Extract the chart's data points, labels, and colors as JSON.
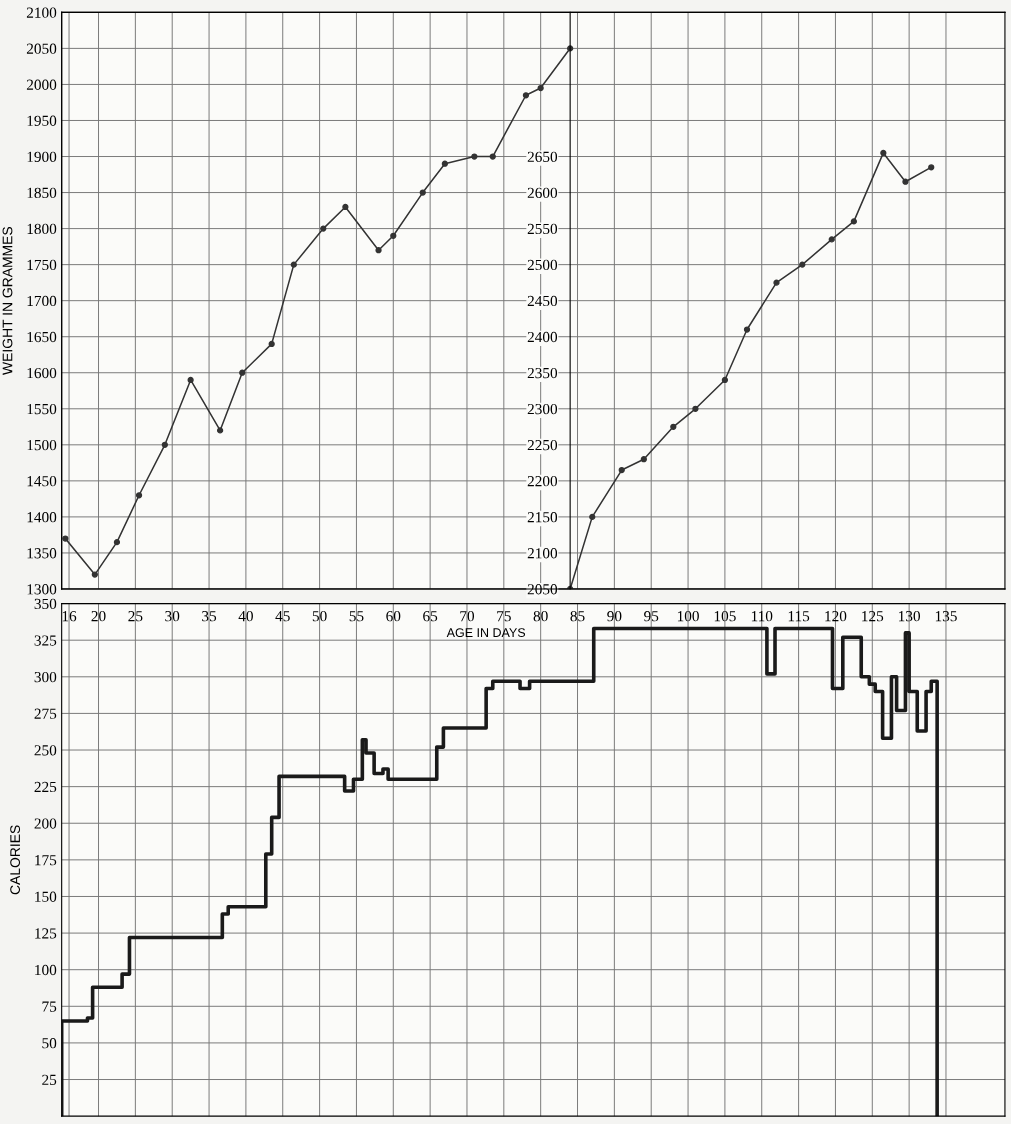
{
  "chart_data": [
    {
      "type": "line",
      "ylabel": "WEIGHT IN GRAMMES",
      "xlim": [
        15,
        143
      ],
      "xticks": [
        16,
        20,
        25,
        30,
        35,
        40,
        45,
        50,
        55,
        60,
        65,
        70,
        75,
        80,
        85,
        90,
        95,
        100,
        105,
        110,
        115,
        120,
        125,
        130,
        135
      ],
      "ylim": [
        1300,
        2100
      ],
      "yticks": [
        1300,
        1350,
        1400,
        1450,
        1500,
        1550,
        1600,
        1650,
        1700,
        1750,
        1800,
        1850,
        1900,
        1950,
        2000,
        2050,
        2100
      ],
      "y2lim": [
        2050,
        2850
      ],
      "y2ticks": [
        2050,
        2100,
        2150,
        2200,
        2250,
        2300,
        2350,
        2400,
        2450,
        2500,
        2550,
        2600,
        2650
      ],
      "tick_labels": "y",
      "grid": true,
      "marker": "circle",
      "line_style": "solid",
      "series": [
        {
          "color": "#333333",
          "x": [
            15.5,
            19.5,
            22.5,
            25.5,
            29,
            32.5,
            36.5,
            39.5,
            43.5,
            46.5,
            50.5,
            53.5,
            58,
            60,
            64,
            67,
            71,
            73.5,
            78,
            80,
            84
          ],
          "values": [
            1370,
            1320,
            1365,
            1430,
            1500,
            1590,
            1520,
            1600,
            1640,
            1750,
            1800,
            1830,
            1770,
            1790,
            1850,
            1890,
            1900,
            1900,
            1985,
            1995,
            2050
          ]
        },
        {
          "color": "#333333",
          "axis": "y2",
          "x": [
            84,
            87,
            91,
            94,
            98,
            101,
            105,
            108,
            112,
            115.5,
            119.5,
            122.5,
            126.5,
            129.5,
            133
          ],
          "values": [
            2050,
            2150,
            2215,
            2230,
            2275,
            2300,
            2340,
            2410,
            2475,
            2500,
            2535,
            2560,
            2655,
            2615,
            2635
          ]
        }
      ]
    },
    {
      "type": "step",
      "xlabel": "AGE IN DAYS",
      "ylabel": "CALORIES",
      "xlim": [
        15,
        143
      ],
      "xticks": [
        16,
        20,
        25,
        30,
        35,
        40,
        45,
        50,
        55,
        60,
        65,
        70,
        75,
        80,
        85,
        90,
        95,
        100,
        105,
        110,
        115,
        120,
        125,
        130,
        135
      ],
      "ylim": [
        0,
        350
      ],
      "yticks": [
        25,
        50,
        75,
        100,
        125,
        150,
        175,
        200,
        225,
        250,
        275,
        300,
        325,
        350
      ],
      "grid": true,
      "marker": "none",
      "line_style": "solid",
      "series": [
        {
          "color": "#1a1a1a",
          "x": [
            15,
            15,
            18.5,
            19.2,
            23.2,
            24.2,
            36.8,
            37.6,
            42.7,
            43.5,
            44.5,
            53.4,
            54.6,
            55.8,
            56.3,
            57.4,
            58.6,
            59.3,
            65.9,
            66.8,
            72.6,
            73.5,
            77.2,
            78.5,
            87.2,
            110.7,
            111.8,
            119.6,
            121,
            123.5,
            124.6,
            125.4,
            126.4,
            127.6,
            128.3,
            129.5,
            130,
            131.1,
            132.3,
            133,
            133.8
          ],
          "values": [
            0,
            65,
            67,
            88,
            97,
            122,
            138,
            143,
            179,
            204,
            232,
            222,
            230,
            257,
            248,
            234,
            237,
            230,
            252,
            265,
            292,
            297,
            292,
            297,
            333,
            302,
            333,
            292,
            327,
            300,
            295,
            290,
            258,
            300,
            277,
            330,
            290,
            263,
            290,
            297,
            0
          ]
        }
      ]
    }
  ]
}
